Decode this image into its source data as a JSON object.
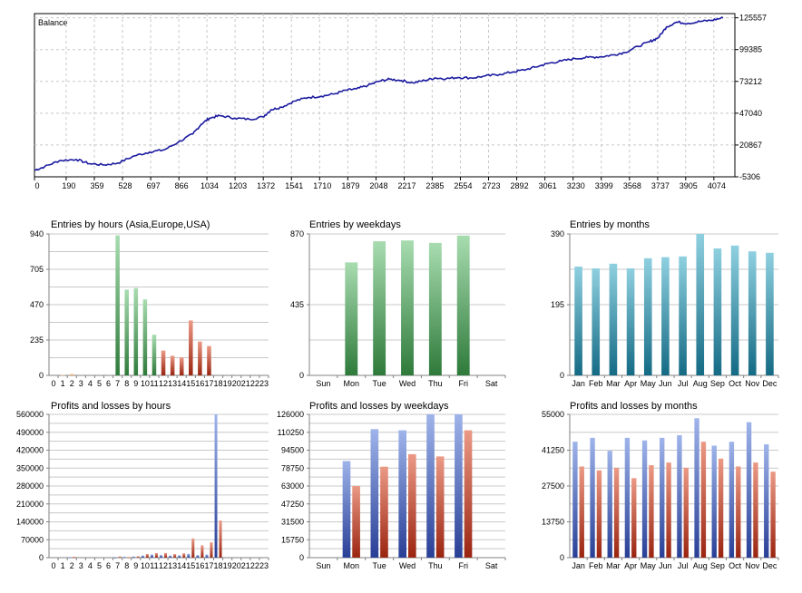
{
  "colors": {
    "balance_line": "#1b1ba0",
    "grid": "#c8c8c8",
    "axis": "#000000",
    "green_top": "#a8dcb0",
    "green_bottom": "#2e7a3a",
    "teal_top": "#8fd0e0",
    "teal_bottom": "#146a84",
    "blue_top": "#9fb4ea",
    "blue_bottom": "#283f96",
    "red_top": "#eb9a86",
    "red_bottom": "#9a2410",
    "orange": "#f0b070"
  },
  "chart_data": [
    {
      "id": "balance",
      "type": "line",
      "title": "Balance",
      "xlim": [
        0,
        4200
      ],
      "ylim": [
        -5306,
        129000
      ],
      "x_ticks": [
        0,
        190,
        359,
        528,
        697,
        866,
        1034,
        1203,
        1372,
        1541,
        1710,
        1879,
        2048,
        2217,
        2385,
        2554,
        2723,
        2892,
        3061,
        3230,
        3399,
        3568,
        3737,
        3905,
        4074
      ],
      "y_ticks": [
        -5306,
        20867,
        47040,
        73212,
        99385,
        125557
      ],
      "points": [
        [
          0,
          0
        ],
        [
          60,
          3000
        ],
        [
          150,
          8000
        ],
        [
          250,
          9000
        ],
        [
          330,
          5500
        ],
        [
          420,
          4500
        ],
        [
          500,
          6000
        ],
        [
          600,
          12000
        ],
        [
          690,
          15000
        ],
        [
          780,
          17000
        ],
        [
          860,
          23000
        ],
        [
          950,
          30000
        ],
        [
          1000,
          38000
        ],
        [
          1050,
          43000
        ],
        [
          1110,
          45000
        ],
        [
          1200,
          43000
        ],
        [
          1290,
          42000
        ],
        [
          1370,
          44000
        ],
        [
          1420,
          50000
        ],
        [
          1480,
          52000
        ],
        [
          1560,
          57000
        ],
        [
          1640,
          60000
        ],
        [
          1720,
          61000
        ],
        [
          1800,
          63000
        ],
        [
          1870,
          66000
        ],
        [
          1930,
          67000
        ],
        [
          2000,
          70000
        ],
        [
          2070,
          73500
        ],
        [
          2130,
          75000
        ],
        [
          2200,
          74000
        ],
        [
          2270,
          72000
        ],
        [
          2340,
          74000
        ],
        [
          2400,
          76000
        ],
        [
          2470,
          75500
        ],
        [
          2540,
          76500
        ],
        [
          2620,
          76000
        ],
        [
          2700,
          77500
        ],
        [
          2790,
          79000
        ],
        [
          2870,
          81000
        ],
        [
          2950,
          83000
        ],
        [
          3030,
          86000
        ],
        [
          3080,
          88000
        ],
        [
          3160,
          90000
        ],
        [
          3240,
          92000
        ],
        [
          3320,
          93000
        ],
        [
          3400,
          93500
        ],
        [
          3470,
          95000
        ],
        [
          3540,
          97000
        ],
        [
          3620,
          102000
        ],
        [
          3690,
          106000
        ],
        [
          3740,
          109000
        ],
        [
          3790,
          118000
        ],
        [
          3850,
          122000
        ],
        [
          3920,
          121000
        ],
        [
          3990,
          122500
        ],
        [
          4060,
          123500
        ],
        [
          4130,
          125557
        ]
      ]
    },
    {
      "id": "entries-hours",
      "type": "bar",
      "title": "Entries by hours (Asia,Europe,USA)",
      "categories": [
        "0",
        "1",
        "2",
        "3",
        "4",
        "5",
        "6",
        "7",
        "8",
        "9",
        "10",
        "11",
        "12",
        "13",
        "14",
        "15",
        "16",
        "17",
        "18",
        "19",
        "20",
        "21",
        "22",
        "23"
      ],
      "values": [
        0,
        3,
        8,
        0,
        0,
        0,
        0,
        930,
        570,
        580,
        505,
        270,
        165,
        130,
        120,
        365,
        225,
        195,
        0,
        0,
        0,
        0,
        0,
        0
      ],
      "bar_colors": [
        "orange",
        "orange",
        "orange",
        "orange",
        "orange",
        "orange",
        "orange",
        "green",
        "green",
        "green",
        "green",
        "green",
        "red",
        "red",
        "red",
        "red",
        "red",
        "red",
        "red",
        "red",
        "red",
        "red",
        "red",
        "red"
      ],
      "y_ticks": [
        0,
        235,
        470,
        705,
        940
      ],
      "ylim": [
        0,
        940
      ]
    },
    {
      "id": "entries-weekdays",
      "type": "bar",
      "title": "Entries by weekdays",
      "categories": [
        "Sun",
        "Mon",
        "Tue",
        "Wed",
        "Thu",
        "Fri",
        "Sat"
      ],
      "values": [
        0,
        695,
        825,
        830,
        815,
        860,
        0
      ],
      "bar_color": "green",
      "y_ticks": [
        0,
        435,
        870
      ],
      "ylim": [
        0,
        870
      ]
    },
    {
      "id": "entries-months",
      "type": "bar",
      "title": "Entries by months",
      "categories": [
        "Jan",
        "Feb",
        "Mar",
        "Apr",
        "May",
        "Jun",
        "Jul",
        "Aug",
        "Sep",
        "Oct",
        "Nov",
        "Dec"
      ],
      "values": [
        300,
        295,
        308,
        295,
        323,
        326,
        328,
        390,
        350,
        358,
        342,
        338
      ],
      "bar_color": "teal",
      "y_ticks": [
        0,
        195,
        390
      ],
      "ylim": [
        0,
        390
      ]
    },
    {
      "id": "pl-hours",
      "type": "bar",
      "title": "Profits and losses by hours",
      "categories": [
        "0",
        "1",
        "2",
        "3",
        "4",
        "5",
        "6",
        "7",
        "8",
        "9",
        "10",
        "11",
        "12",
        "13",
        "14",
        "15",
        "16",
        "17",
        "18",
        "19",
        "20",
        "21",
        "22",
        "23"
      ],
      "series": [
        {
          "values": [
            0,
            0,
            2000,
            0,
            0,
            0,
            0,
            1000,
            3000,
            4000,
            8000,
            12000,
            10000,
            8000,
            9000,
            15000,
            10000,
            12000,
            560000,
            0,
            0,
            0,
            0,
            0
          ]
        },
        {
          "values": [
            0,
            0,
            3000,
            0,
            0,
            0,
            0,
            4000,
            2000,
            5000,
            14000,
            18000,
            18000,
            14000,
            17000,
            75000,
            48000,
            60000,
            145000,
            0,
            0,
            0,
            0,
            0
          ]
        }
      ],
      "y_ticks": [
        0,
        70000,
        140000,
        210000,
        280000,
        350000,
        420000,
        490000,
        560000
      ],
      "ylim": [
        0,
        560000
      ]
    },
    {
      "id": "pl-weekdays",
      "type": "bar",
      "title": "Profits and losses by weekdays",
      "categories": [
        "Sun",
        "Mon",
        "Tue",
        "Wed",
        "Thu",
        "Fri",
        "Sat"
      ],
      "series": [
        {
          "values": [
            0,
            85000,
            113000,
            112000,
            126000,
            126000,
            0
          ]
        },
        {
          "values": [
            0,
            63000,
            80000,
            91000,
            89000,
            112000,
            0
          ]
        }
      ],
      "y_ticks": [
        0,
        15750,
        31500,
        47250,
        63000,
        78750,
        94500,
        110250,
        126000
      ],
      "ylim": [
        0,
        126000
      ]
    },
    {
      "id": "pl-months",
      "type": "bar",
      "title": "Profits and losses by months",
      "categories": [
        "Jan",
        "Feb",
        "Mar",
        "Apr",
        "May",
        "Jun",
        "Jul",
        "Aug",
        "Sep",
        "Oct",
        "Nov",
        "Dec"
      ],
      "series": [
        {
          "values": [
            44500,
            46000,
            41000,
            46000,
            45000,
            46000,
            47000,
            53500,
            43000,
            44500,
            52000,
            43500
          ]
        },
        {
          "values": [
            35000,
            33500,
            34500,
            30500,
            35500,
            36500,
            34500,
            44500,
            38000,
            35000,
            36500,
            33000
          ]
        }
      ],
      "y_ticks": [
        0,
        13750,
        27500,
        41250,
        55000
      ],
      "ylim": [
        0,
        55000
      ]
    }
  ]
}
